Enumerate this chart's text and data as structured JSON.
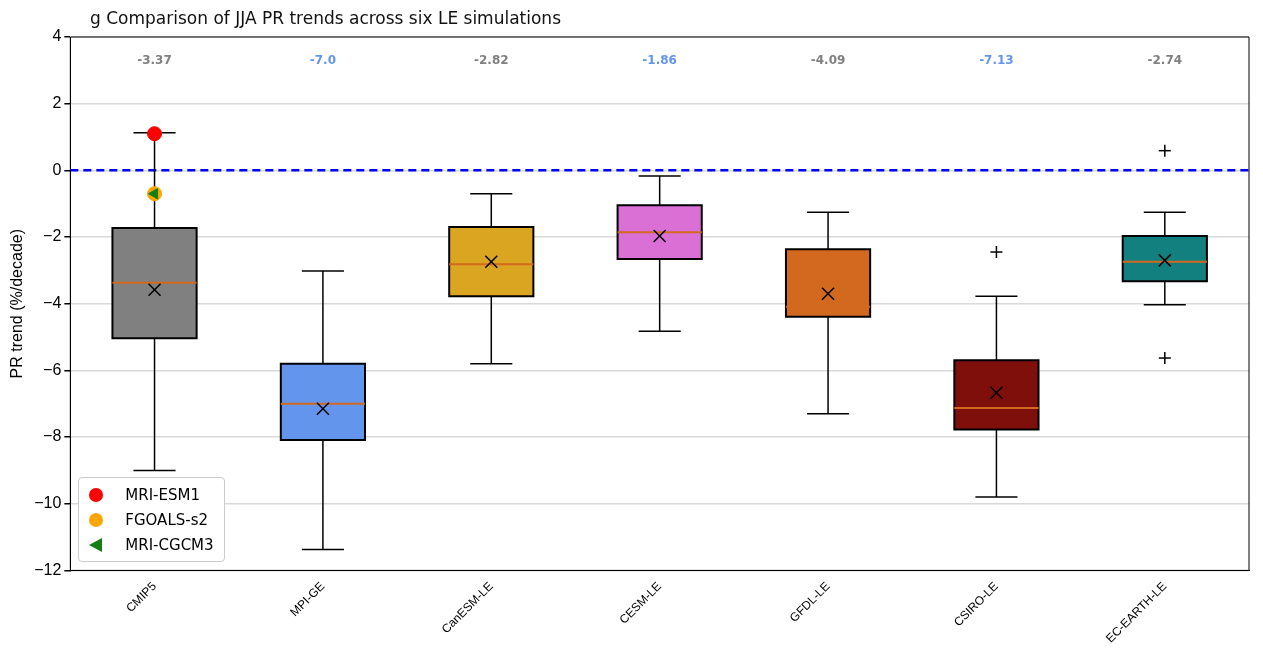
{
  "chart_data": {
    "type": "box",
    "title": "g Comparison of JJA PR trends across six LE simulations",
    "ylabel": "PR trend (%/decade)",
    "categories": [
      "CMIP5",
      "MPI-GE",
      "CanESM-LE",
      "CESM-LE",
      "GFDL-LE",
      "CSIRO-LE",
      "EC-EARTH-LE"
    ],
    "colors": [
      "#808080",
      "#6495ed",
      "#daa520",
      "#da70d6",
      "#d2691e",
      "#7f0f0a",
      "#138080"
    ],
    "boxes": [
      {
        "low": -9.0,
        "q1": -5.04,
        "median": -3.37,
        "q3": -1.73,
        "high": 1.13,
        "mean": -3.58
      },
      {
        "low": -11.37,
        "q1": -8.09,
        "median": -7.0,
        "q3": -5.8,
        "high": -3.02,
        "mean": -7.15
      },
      {
        "low": -5.8,
        "q1": -3.78,
        "median": -2.82,
        "q3": -1.7,
        "high": -0.7,
        "mean": -2.74
      },
      {
        "low": -4.83,
        "q1": -2.66,
        "median": -1.86,
        "q3": -1.05,
        "high": -0.17,
        "mean": -1.97
      },
      {
        "low": -7.3,
        "q1": -4.39,
        "median": -4.09,
        "q3": -2.37,
        "high": -1.26,
        "mean": -3.7
      },
      {
        "low": -9.8,
        "q1": -7.77,
        "median": -7.13,
        "q3": -5.7,
        "high": -3.78,
        "mean": -6.67,
        "outliers": [
          -2.45
        ]
      },
      {
        "low": -4.03,
        "q1": -3.33,
        "median": -2.74,
        "q3": -1.97,
        "high": -1.26,
        "mean": -2.7,
        "outliers": [
          0.59,
          -5.63
        ]
      }
    ],
    "value_labels": [
      "-3.37",
      "-7.0",
      "-2.82",
      "-1.86",
      "-4.09",
      "-7.13",
      "-2.74"
    ],
    "series": [
      {
        "name": "MRI-ESM1",
        "type": "scatter",
        "color": "#ff0000",
        "marker": "circle",
        "x": [
          "CMIP5"
        ],
        "values": [
          1.1
        ]
      },
      {
        "name": "FGOALS-s2",
        "type": "scatter",
        "color": "#ffa500",
        "marker": "circle",
        "x": [
          "CMIP5"
        ],
        "values": [
          -0.7
        ]
      },
      {
        "name": "MRI-CGCM3",
        "type": "scatter",
        "color": "#137f13",
        "marker": "triangle",
        "x": [
          "CMIP5"
        ],
        "values": [
          -0.7
        ]
      }
    ],
    "ref_lines": [
      {
        "axis": "y",
        "value": 0,
        "color": "#0000ff",
        "line_style": "dashed"
      }
    ],
    "ylim": [
      -12,
      4
    ],
    "yticks": [
      -12,
      -10,
      -8,
      -6,
      -4,
      -2,
      0,
      2,
      4
    ],
    "grid": "y",
    "legend": "bottom left"
  }
}
